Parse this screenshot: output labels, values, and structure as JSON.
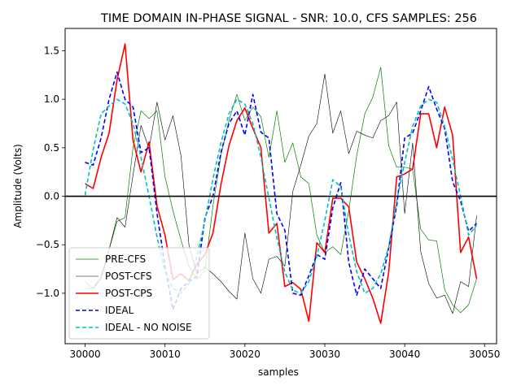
{
  "chart_data": {
    "type": "line",
    "title": "TIME DOMAIN IN-PHASE SIGNAL - SNR: 10.0, CFS SAMPLES: 256",
    "xlabel": "samples",
    "ylabel": "Amplitude (Volts)",
    "xlim": [
      29997.5,
      30051.5
    ],
    "ylim": [
      -1.52,
      1.73
    ],
    "xticks": [
      30000,
      30010,
      30020,
      30030,
      30040,
      30050
    ],
    "yticks": [
      -1.0,
      -0.5,
      0.0,
      0.5,
      1.0,
      1.5
    ],
    "xtick_labels": [
      "30000",
      "30010",
      "30020",
      "30030",
      "30040",
      "30050"
    ],
    "ytick_labels": [
      "−1.0",
      "−0.5",
      "0.0",
      "0.5",
      "1.0",
      "1.5"
    ],
    "zero_line": true,
    "grid": false,
    "legend_position": "lower-left",
    "x": [
      30000,
      30001,
      30002,
      30003,
      30004,
      30005,
      30006,
      30007,
      30008,
      30009,
      30010,
      30011,
      30012,
      30013,
      30014,
      30015,
      30016,
      30017,
      30018,
      30019,
      30020,
      30021,
      30022,
      30023,
      30024,
      30025,
      30026,
      30027,
      30028,
      30029,
      30030,
      30031,
      30032,
      30033,
      30034,
      30035,
      30036,
      30037,
      30038,
      30039,
      30040,
      30041,
      30042,
      30043,
      30044,
      30045,
      30046,
      30047,
      30048,
      30049
    ],
    "series": [
      {
        "name": "PRE-CFS",
        "color": "#008000",
        "width": 0.7,
        "dash": "",
        "values": [
          -0.88,
          -0.95,
          -0.82,
          -0.55,
          -0.26,
          -0.22,
          0.5,
          0.88,
          0.8,
          0.88,
          0.2,
          -0.15,
          -0.45,
          -0.72,
          -0.86,
          -0.76,
          -0.1,
          0.42,
          0.78,
          1.05,
          0.78,
          0.92,
          0.82,
          0.4,
          0.88,
          0.35,
          0.55,
          0.2,
          0.13,
          -0.4,
          -0.58,
          -0.52,
          -0.6,
          -0.15,
          0.42,
          0.85,
          1.02,
          1.33,
          0.52,
          0.3,
          0.3,
          0.28,
          -0.34,
          -0.45,
          -0.46,
          -0.96,
          -1.12,
          -1.2,
          -1.12,
          -0.85
        ]
      },
      {
        "name": "POST-CFS",
        "color": "#000000",
        "width": 0.6,
        "dash": "",
        "values": [
          -0.95,
          -0.95,
          -0.85,
          -0.55,
          -0.22,
          -0.32,
          0.22,
          0.73,
          0.49,
          0.97,
          0.58,
          0.83,
          0.42,
          -0.5,
          -0.8,
          -0.73,
          -0.8,
          -0.88,
          -0.98,
          -1.06,
          -0.38,
          -0.85,
          -1.0,
          -0.65,
          -0.62,
          -0.72,
          0.05,
          0.32,
          0.62,
          0.75,
          1.26,
          0.65,
          0.88,
          0.44,
          0.67,
          0.63,
          0.6,
          0.78,
          0.83,
          0.97,
          -0.18,
          0.55,
          -0.57,
          -0.9,
          -1.05,
          -1.02,
          -1.21,
          -0.88,
          -0.93,
          -0.2
        ]
      },
      {
        "name": "POST-CPS",
        "color": "#ff0000",
        "width": 1.6,
        "dash": "",
        "values": [
          0.13,
          0.08,
          0.4,
          0.65,
          1.2,
          1.57,
          0.58,
          0.25,
          0.56,
          -0.1,
          -0.4,
          -0.86,
          -0.8,
          -0.87,
          -0.7,
          -0.6,
          -0.38,
          0.12,
          0.52,
          0.78,
          0.91,
          0.7,
          0.5,
          -0.38,
          -0.28,
          -0.93,
          -0.89,
          -0.96,
          -1.29,
          -0.48,
          -0.58,
          -0.02,
          -0.02,
          -0.11,
          -0.68,
          -0.85,
          -1.05,
          -1.31,
          -0.78,
          0.2,
          0.23,
          0.28,
          0.85,
          0.85,
          0.5,
          0.92,
          0.63,
          -0.58,
          -0.42,
          -0.85
        ]
      },
      {
        "name": "IDEAL",
        "color": "#0000ff",
        "width": 1.6,
        "dash": "5,3",
        "values": [
          0.35,
          0.32,
          0.6,
          1.0,
          1.28,
          1.0,
          0.92,
          0.45,
          0.5,
          -0.18,
          -0.72,
          -1.17,
          -0.95,
          -0.88,
          -0.83,
          -0.22,
          0.0,
          0.45,
          0.75,
          0.88,
          0.63,
          1.05,
          0.66,
          0.6,
          -0.18,
          -0.35,
          -1.0,
          -1.02,
          -0.82,
          -0.6,
          -0.65,
          -0.12,
          0.14,
          -0.68,
          -1.02,
          -0.75,
          -0.85,
          -0.95,
          -0.53,
          -0.1,
          0.6,
          0.65,
          0.88,
          1.13,
          0.9,
          0.7,
          0.15,
          -0.05,
          -0.36,
          -0.28
        ]
      },
      {
        "name": "IDEAL - NO NOISE",
        "color": "#00bfbf",
        "width": 1.6,
        "dash": "5,3",
        "values": [
          0.01,
          0.48,
          0.85,
          0.93,
          1.0,
          0.95,
          0.75,
          0.4,
          0.0,
          -0.42,
          -0.78,
          -0.95,
          -1.0,
          -0.9,
          -0.62,
          -0.25,
          0.18,
          0.55,
          0.85,
          1.0,
          0.95,
          0.75,
          0.4,
          -0.02,
          -0.43,
          -0.78,
          -0.97,
          -1.0,
          -0.88,
          -0.62,
          -0.25,
          0.17,
          0.1,
          -0.4,
          -0.78,
          -1.0,
          -0.95,
          -0.8,
          -0.52,
          -0.05,
          0.35,
          0.72,
          0.93,
          1.0,
          0.97,
          0.72,
          0.38,
          0.0,
          -0.4,
          -0.3
        ]
      }
    ]
  }
}
